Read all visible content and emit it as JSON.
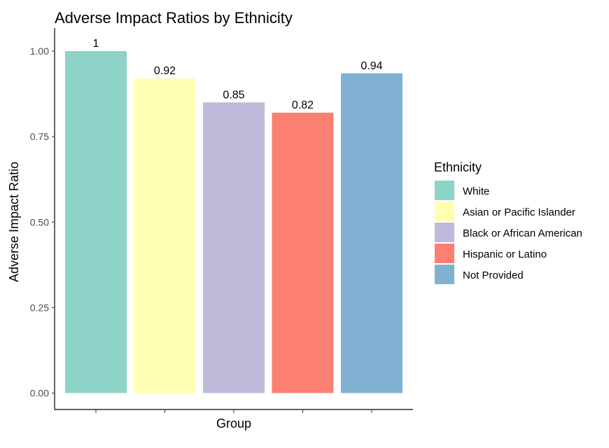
{
  "chart_data": {
    "type": "bar",
    "title": "Adverse Impact Ratios by Ethnicity",
    "xlabel": "Group",
    "ylabel": "Adverse Impact Ratio",
    "categories": [
      "White",
      "Asian or Pacific Islander",
      "Black or African American",
      "Hispanic or Latino",
      "Not Provided"
    ],
    "values": [
      1.0,
      0.92,
      0.85,
      0.82,
      0.935
    ],
    "data_labels": [
      "1",
      "0.92",
      "0.85",
      "0.82",
      "0.94"
    ],
    "colors": [
      "#8DD3C7",
      "#FFFFB3",
      "#BEBADA",
      "#FB8072",
      "#80B1D3"
    ],
    "ylim": [
      0,
      1.05
    ],
    "yticks": [
      0,
      0.25,
      0.5,
      0.75,
      1.0
    ],
    "ytick_labels": [
      "0.00",
      "0.25",
      "0.50",
      "0.75",
      "1.00"
    ],
    "grid": false,
    "legend": {
      "title": "Ethnicity",
      "placement": "right",
      "entries": [
        "White",
        "Asian or Pacific Islander",
        "Black or African American",
        "Hispanic or Latino",
        "Not Provided"
      ]
    }
  }
}
